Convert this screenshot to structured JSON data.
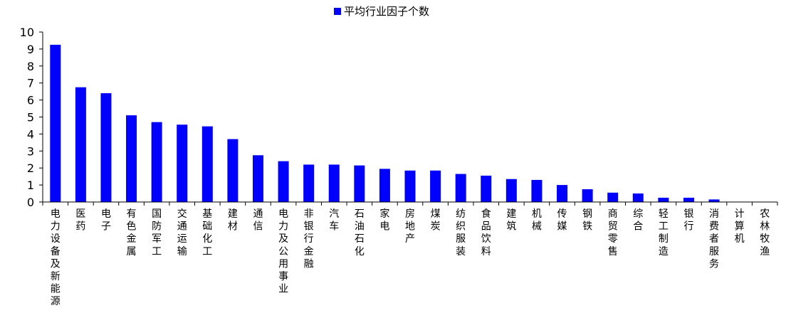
{
  "chart_data": {
    "type": "bar",
    "legend_position": "top-center",
    "grid": false,
    "ylim": [
      0,
      10
    ],
    "yticks": [
      0,
      1,
      2,
      3,
      4,
      5,
      6,
      7,
      8,
      9,
      10
    ],
    "categories": [
      "电力设备及新能源",
      "医药",
      "电子",
      "有色金属",
      "国防军工",
      "交通运输",
      "基础化工",
      "建材",
      "通信",
      "电力及公用事业",
      "非银行金融",
      "汽车",
      "石油石化",
      "家电",
      "房地产",
      "煤炭",
      "纺织服装",
      "食品饮料",
      "建筑",
      "机械",
      "传媒",
      "钢铁",
      "商贸零售",
      "综合",
      "轻工制造",
      "银行",
      "消费者服务",
      "计算机",
      "农林牧渔"
    ],
    "series": [
      {
        "name": "平均行业因子个数",
        "color": "#0000ff",
        "values": [
          9.25,
          6.75,
          6.4,
          5.1,
          4.7,
          4.55,
          4.45,
          3.7,
          2.75,
          2.4,
          2.2,
          2.2,
          2.15,
          1.95,
          1.85,
          1.85,
          1.65,
          1.55,
          1.35,
          1.3,
          1.0,
          0.75,
          0.55,
          0.5,
          0.25,
          0.25,
          0.15,
          0.0,
          0.0
        ]
      }
    ]
  }
}
